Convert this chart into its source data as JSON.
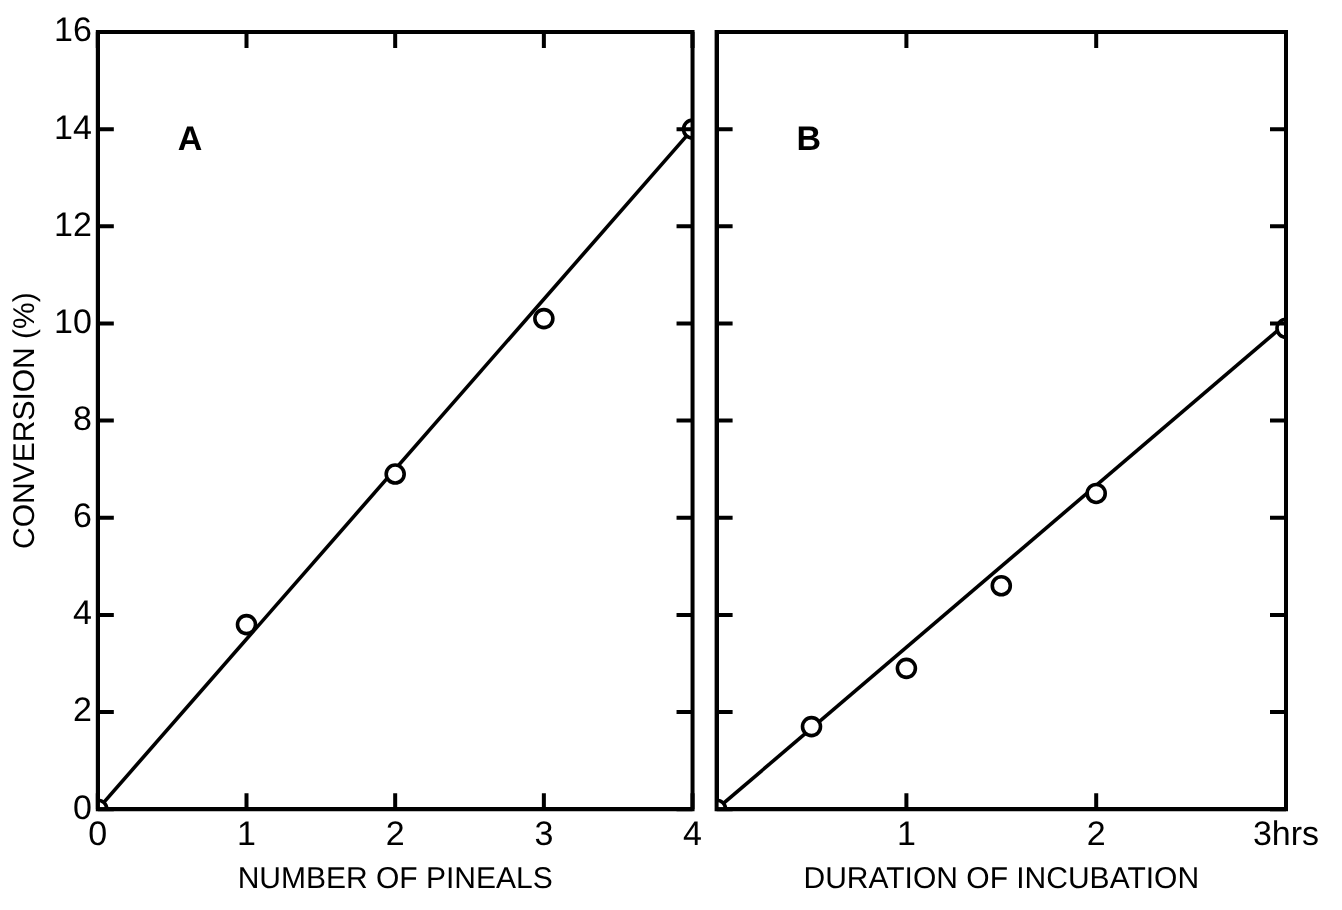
{
  "chart_data": [
    {
      "type": "scatter",
      "xlabel": "NUMBER OF PINEALS",
      "ylabel": "CONVERSION (%)",
      "annotations": [
        "A"
      ],
      "x": [
        0,
        1,
        2,
        3,
        4
      ],
      "xlim": [
        0,
        4
      ],
      "xticks": [
        0,
        1,
        2,
        3,
        4
      ],
      "ylim": [
        0,
        16
      ],
      "yticks": [
        0,
        2,
        4,
        6,
        8,
        10,
        12,
        14,
        16
      ],
      "marker": "circle",
      "grid": false,
      "legend": false,
      "series": [
        {
          "color": "#000000",
          "values": [
            0,
            3.8,
            6.9,
            10.1,
            14
          ]
        },
        {
          "type": "line",
          "color": "#000000",
          "x": [
            0,
            4
          ],
          "values": [
            0,
            14
          ],
          "marker": "none"
        }
      ]
    },
    {
      "type": "scatter",
      "xlabel": "DURATION OF INCUBATION",
      "annotations": [
        "B"
      ],
      "x": [
        0,
        0.5,
        1,
        1.5,
        2,
        3
      ],
      "xlim": [
        0,
        3
      ],
      "xticks": [
        1,
        2,
        {
          "value": 3,
          "label": "3hrs"
        }
      ],
      "ylim": [
        0,
        16
      ],
      "yticks": [
        0,
        2,
        4,
        6,
        8,
        10,
        12,
        14,
        16
      ],
      "tick_labels": "x",
      "marker": "circle",
      "grid": false,
      "legend": false,
      "series": [
        {
          "color": "#000000",
          "values": [
            0,
            1.7,
            2.9,
            4.6,
            6.5,
            9.9
          ]
        },
        {
          "type": "line",
          "color": "#000000",
          "x": [
            0,
            3
          ],
          "values": [
            0,
            10
          ],
          "marker": "none"
        }
      ]
    }
  ]
}
